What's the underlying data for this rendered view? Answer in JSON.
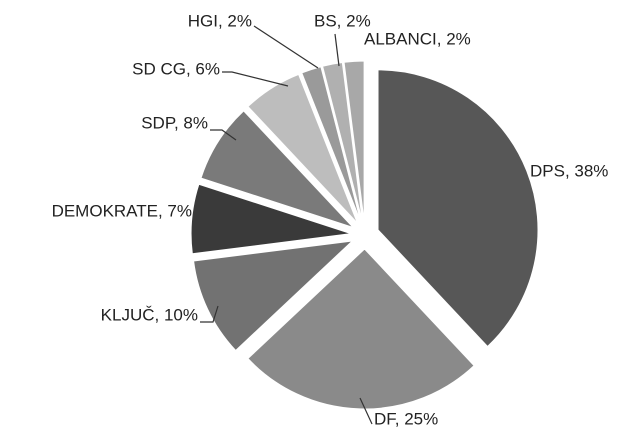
{
  "chart_data": {
    "type": "pie",
    "values": [
      38,
      25,
      10,
      7,
      8,
      6,
      2,
      2,
      2
    ],
    "value_labels": [
      "DPS, 38%",
      "DF, 25%",
      "KLJUČ, 10%",
      "DEMOKRATE, 7%",
      "SDP, 8%",
      "SD CG, 6%",
      "HGI, 2%",
      "BS, 2%",
      "ALBANCI, 2%"
    ],
    "colors": [
      "#575757",
      "#8a8a8a",
      "#727272",
      "#3a3a3a",
      "#7a7a7a",
      "#bdbdbd",
      "#9a9a9a",
      "#b0b0b0",
      "#a8a8a8"
    ]
  }
}
